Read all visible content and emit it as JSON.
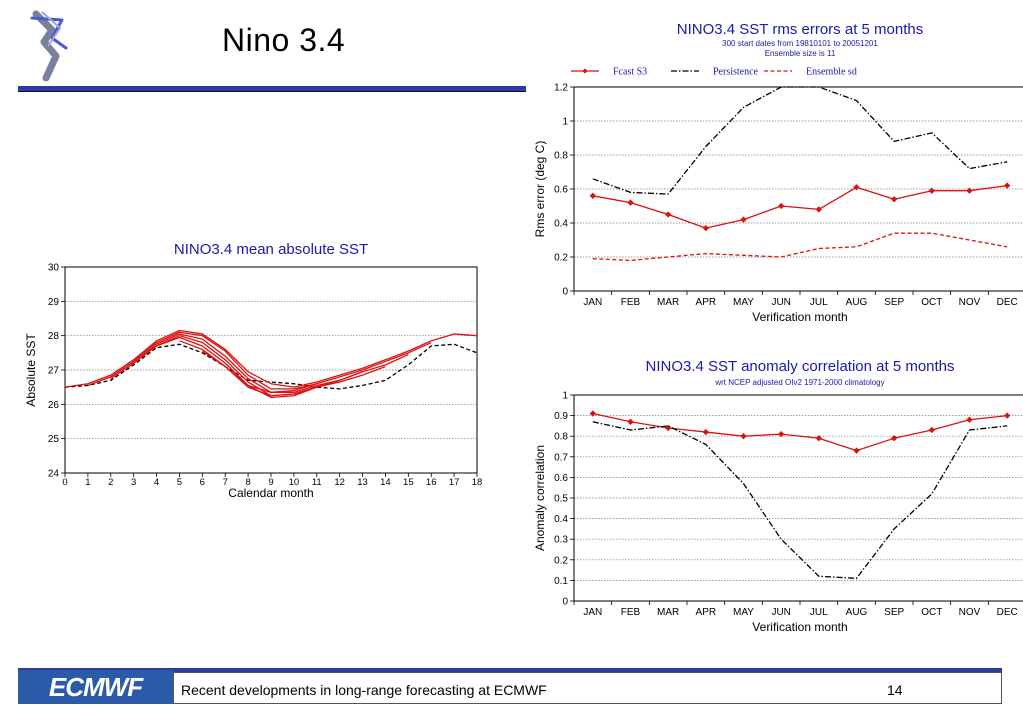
{
  "slide": {
    "title": "Nino 3.4",
    "footer_text": "Recent developments in long-range forecasting at ECMWF",
    "page_number": "14",
    "logo_text": "ECMWF"
  },
  "colors": {
    "accent_bar": "#2d3a9e",
    "chart_title": "#1a1aaa",
    "forecast_red": "#dd1111",
    "persistence_black": "#000000",
    "logo_blue": "#2a5aa8"
  },
  "chart_data": [
    {
      "id": "rms",
      "type": "line",
      "title": "NINO3.4 SST rms errors at 5 months",
      "subtitle_lines": [
        "300 start dates from 19810101 to 20051201",
        "Ensemble size is 11"
      ],
      "xlabel": "Verification month",
      "ylabel": "Rms error (deg C)",
      "categories": [
        "JAN",
        "FEB",
        "MAR",
        "APR",
        "MAY",
        "JUN",
        "JUL",
        "AUG",
        "SEP",
        "OCT",
        "NOV",
        "DEC"
      ],
      "ylim": [
        0,
        1.2
      ],
      "yticks": [
        "0",
        "0.2",
        "0.4",
        "0.6",
        "0.8",
        "1",
        "1.2"
      ],
      "grid": true,
      "legend_position": "top",
      "series": [
        {
          "name": "Fcast S3",
          "style": "solid-diamond",
          "color": "#dd1111",
          "values": [
            0.56,
            0.52,
            0.45,
            0.37,
            0.42,
            0.5,
            0.48,
            0.61,
            0.54,
            0.59,
            0.59,
            0.62
          ]
        },
        {
          "name": "Persistence",
          "style": "dashdot",
          "color": "#000000",
          "values": [
            0.66,
            0.58,
            0.57,
            0.85,
            1.08,
            1.23,
            1.21,
            1.12,
            0.88,
            0.93,
            0.72,
            0.76
          ]
        },
        {
          "name": "Ensemble sd",
          "style": "dashed",
          "color": "#dd1111",
          "values": [
            0.19,
            0.18,
            0.2,
            0.22,
            0.21,
            0.2,
            0.25,
            0.26,
            0.34,
            0.34,
            0.3,
            0.26
          ]
        }
      ]
    },
    {
      "id": "mean",
      "type": "line",
      "title": "NINO3.4 mean absolute SST",
      "xlabel": "Calendar month",
      "ylabel": "Absolute SST",
      "x": [
        0,
        1,
        2,
        3,
        4,
        5,
        6,
        7,
        8,
        9,
        10,
        11,
        12,
        13,
        14,
        15,
        16,
        17,
        18
      ],
      "xticks": [
        "0",
        "1",
        "2",
        "3",
        "4",
        "5",
        "6",
        "7",
        "8",
        "9",
        "10",
        "11",
        "12",
        "13",
        "14",
        "15",
        "16",
        "17",
        "18"
      ],
      "ylim": [
        24,
        30
      ],
      "yticks": [
        "24",
        "25",
        "26",
        "27",
        "28",
        "29",
        "30"
      ],
      "grid": true,
      "series": [
        {
          "style": "dashed",
          "color": "#000000",
          "x": [
            0,
            1,
            2,
            3,
            4,
            5,
            6,
            7,
            8,
            9,
            10,
            11,
            12,
            13,
            14,
            15,
            16,
            17,
            18
          ],
          "values": [
            26.5,
            26.55,
            26.7,
            27.15,
            27.65,
            27.75,
            27.5,
            27.1,
            26.7,
            26.65,
            26.6,
            26.5,
            26.45,
            26.55,
            26.7,
            27.15,
            27.7,
            27.75,
            27.5
          ]
        },
        {
          "style": "solid",
          "color": "#dd1111",
          "x": [
            0,
            1,
            2,
            3,
            4,
            5,
            6,
            7,
            8,
            9,
            10,
            11,
            12,
            13,
            14,
            15,
            16,
            17,
            18
          ],
          "values": [
            26.5,
            26.6,
            26.85,
            27.3,
            27.85,
            28.15,
            28.05,
            27.6,
            26.95,
            26.6,
            26.5,
            26.65,
            26.85,
            27.05,
            27.3,
            27.55,
            27.85,
            28.05,
            28.0
          ]
        },
        {
          "style": "solid",
          "color": "#dd1111",
          "x": [
            1,
            2,
            3,
            4,
            5,
            6,
            7,
            8,
            9,
            10,
            11
          ],
          "values": [
            26.55,
            26.8,
            27.25,
            27.8,
            28.1,
            28.0,
            27.55,
            26.85,
            26.45,
            26.45,
            26.6
          ]
        },
        {
          "style": "solid",
          "color": "#dd1111",
          "x": [
            2,
            3,
            4,
            5,
            6,
            7,
            8,
            9,
            10,
            11,
            12
          ],
          "values": [
            26.75,
            27.2,
            27.75,
            28.05,
            27.9,
            27.4,
            26.75,
            26.35,
            26.35,
            26.55,
            26.7
          ]
        },
        {
          "style": "solid",
          "color": "#dd1111",
          "x": [
            3,
            4,
            5,
            6,
            7,
            8,
            9,
            10,
            11,
            12,
            13
          ],
          "values": [
            27.2,
            27.7,
            28.0,
            27.8,
            27.3,
            26.65,
            26.25,
            26.3,
            26.5,
            26.7,
            26.95
          ]
        },
        {
          "style": "solid",
          "color": "#dd1111",
          "x": [
            4,
            5,
            6,
            7,
            8,
            9,
            10,
            11,
            12,
            13,
            14
          ],
          "values": [
            27.7,
            27.95,
            27.7,
            27.2,
            26.55,
            26.2,
            26.25,
            26.5,
            26.65,
            26.85,
            27.1
          ]
        },
        {
          "style": "solid",
          "color": "#dd1111",
          "x": [
            5,
            6,
            7,
            8,
            9,
            10,
            11,
            12,
            13,
            14,
            15
          ],
          "values": [
            27.85,
            27.6,
            27.1,
            26.5,
            26.25,
            26.3,
            26.5,
            26.7,
            26.95,
            27.15,
            27.45
          ]
        },
        {
          "style": "solid",
          "color": "#dd1111",
          "x": [
            6,
            7,
            8,
            9,
            10,
            11,
            12,
            13,
            14,
            15,
            16
          ],
          "values": [
            27.55,
            27.1,
            26.55,
            26.35,
            26.4,
            26.6,
            26.8,
            27.0,
            27.25,
            27.5,
            27.8
          ]
        }
      ]
    },
    {
      "id": "corr",
      "type": "line",
      "title": "NINO3.4 SST anomaly correlation at 5 months",
      "subtitle_lines": [
        "wrt NCEP adjusted OIv2 1971-2000 climatology"
      ],
      "xlabel": "Verification month",
      "ylabel": "Anomaly correlation",
      "categories": [
        "JAN",
        "FEB",
        "MAR",
        "APR",
        "MAY",
        "JUN",
        "JUL",
        "AUG",
        "SEP",
        "OCT",
        "NOV",
        "DEC"
      ],
      "ylim": [
        0,
        1
      ],
      "yticks": [
        "0",
        "0.1",
        "0.2",
        "0.3",
        "0.4",
        "0.5",
        "0.6",
        "0.7",
        "0.8",
        "0.9",
        "1"
      ],
      "grid": true,
      "series": [
        {
          "style": "solid-diamond",
          "color": "#dd1111",
          "values": [
            0.91,
            0.87,
            0.84,
            0.82,
            0.8,
            0.81,
            0.79,
            0.73,
            0.79,
            0.83,
            0.88,
            0.9
          ]
        },
        {
          "style": "dashdot",
          "color": "#000000",
          "values": [
            0.87,
            0.83,
            0.85,
            0.76,
            0.57,
            0.3,
            0.12,
            0.11,
            0.35,
            0.52,
            0.83,
            0.85
          ]
        }
      ]
    }
  ]
}
